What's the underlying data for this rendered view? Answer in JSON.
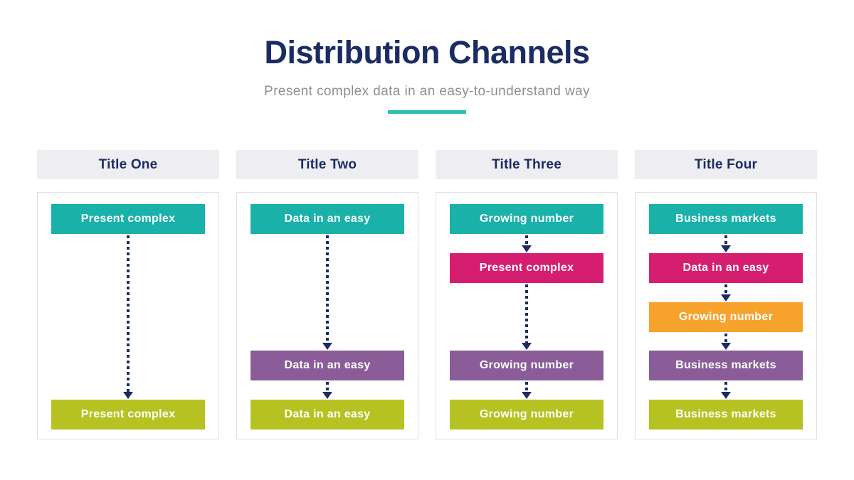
{
  "header": {
    "title": "Distribution Channels",
    "subtitle": "Present complex data in an easy-to-understand way"
  },
  "colors": {
    "navy": "#1b2c64",
    "accent": "#2bbcb2",
    "subtitle_gray": "#8e8e8e",
    "header_band": "#eeeef2",
    "panel_border": "#e0e0e3",
    "bar_text": "#ffffff",
    "teal": "#19b1a8",
    "magenta": "#d61e70",
    "orange": "#f6a22c",
    "purple": "#8a5d99",
    "lime": "#b5c222"
  },
  "columns": [
    {
      "header": "Title One",
      "rows": [
        {
          "slot": 0,
          "label": "Present complex",
          "color": "teal"
        },
        {
          "slot": 4,
          "label": "Present complex",
          "color": "lime"
        }
      ]
    },
    {
      "header": "Title Two",
      "rows": [
        {
          "slot": 0,
          "label": "Data in an easy",
          "color": "teal"
        },
        {
          "slot": 3,
          "label": "Data in an easy",
          "color": "purple"
        },
        {
          "slot": 4,
          "label": "Data in an easy",
          "color": "lime"
        }
      ]
    },
    {
      "header": "Title Three",
      "rows": [
        {
          "slot": 0,
          "label": "Growing number",
          "color": "teal"
        },
        {
          "slot": 1,
          "label": "Present complex",
          "color": "magenta"
        },
        {
          "slot": 3,
          "label": "Growing number",
          "color": "purple"
        },
        {
          "slot": 4,
          "label": "Growing number",
          "color": "lime"
        }
      ]
    },
    {
      "header": "Title Four",
      "rows": [
        {
          "slot": 0,
          "label": "Business markets",
          "color": "teal"
        },
        {
          "slot": 1,
          "label": "Data in an easy",
          "color": "magenta"
        },
        {
          "slot": 2,
          "label": "Growing number",
          "color": "orange"
        },
        {
          "slot": 3,
          "label": "Business markets",
          "color": "purple"
        },
        {
          "slot": 4,
          "label": "Business markets",
          "color": "lime"
        }
      ]
    }
  ]
}
